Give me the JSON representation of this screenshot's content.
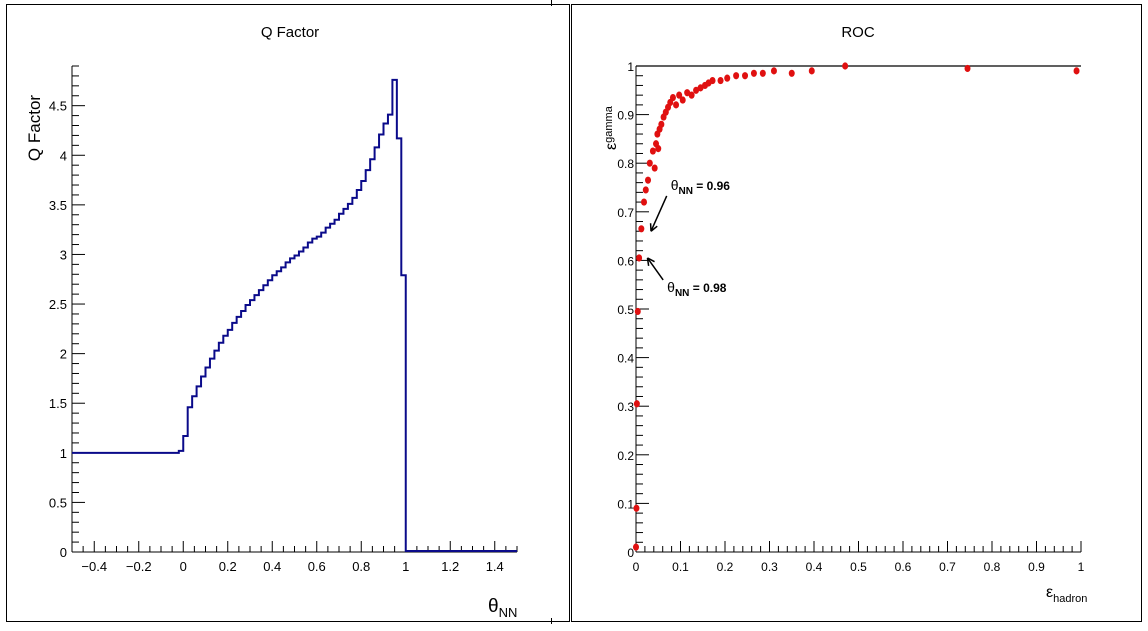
{
  "chart_data": [
    {
      "type": "histogram-step",
      "title": "Q Factor",
      "xlabel": "θ",
      "xlabel_sub": "NN",
      "ylabel": "Q Factor",
      "xlim": [
        -0.5,
        1.5
      ],
      "ylim": [
        0,
        4.9
      ],
      "xticks": [
        -0.4,
        -0.2,
        0,
        0.2,
        0.4,
        0.6,
        0.8,
        1,
        1.2,
        1.4
      ],
      "xtick_labels": [
        "−0.4",
        "−0.2",
        "0",
        "0.2",
        "0.4",
        "0.6",
        "0.8",
        "1",
        "1.2",
        "1.4"
      ],
      "yticks": [
        0,
        0.5,
        1,
        1.5,
        2,
        2.5,
        3,
        3.5,
        4,
        4.5
      ],
      "ytick_labels": [
        "0",
        "0.5",
        "1",
        "1.5",
        "2",
        "2.5",
        "3",
        "3.5",
        "4",
        "4.5"
      ],
      "line_color": "#0a0a8a",
      "bin_width": 0.02,
      "bin_starts": [
        -0.5,
        -0.48,
        -0.46,
        -0.44,
        -0.42,
        -0.4,
        -0.38,
        -0.36,
        -0.34,
        -0.32,
        -0.3,
        -0.28,
        -0.26,
        -0.24,
        -0.22,
        -0.2,
        -0.18,
        -0.16,
        -0.14,
        -0.12,
        -0.1,
        -0.08,
        -0.06,
        -0.04,
        -0.02,
        0.0,
        0.02,
        0.04,
        0.06,
        0.08,
        0.1,
        0.12,
        0.14,
        0.16,
        0.18,
        0.2,
        0.22,
        0.24,
        0.26,
        0.28,
        0.3,
        0.32,
        0.34,
        0.36,
        0.38,
        0.4,
        0.42,
        0.44,
        0.46,
        0.48,
        0.5,
        0.52,
        0.54,
        0.56,
        0.58,
        0.6,
        0.62,
        0.64,
        0.66,
        0.68,
        0.7,
        0.72,
        0.74,
        0.76,
        0.78,
        0.8,
        0.82,
        0.84,
        0.86,
        0.88,
        0.9,
        0.92,
        0.94,
        0.96,
        0.98,
        1.0,
        1.02,
        1.04,
        1.06,
        1.08,
        1.1,
        1.12,
        1.14,
        1.16,
        1.18,
        1.2,
        1.22,
        1.24,
        1.26,
        1.28,
        1.3,
        1.32,
        1.34,
        1.36,
        1.38,
        1.4,
        1.42,
        1.44,
        1.46,
        1.48
      ],
      "values": [
        1.0,
        1.0,
        1.0,
        1.0,
        1.0,
        1.0,
        1.0,
        1.0,
        1.0,
        1.0,
        1.0,
        1.0,
        1.0,
        1.0,
        1.0,
        1.0,
        1.0,
        1.0,
        1.0,
        1.0,
        1.0,
        1.0,
        1.0,
        1.0,
        1.02,
        1.17,
        1.46,
        1.57,
        1.67,
        1.77,
        1.86,
        1.95,
        2.03,
        2.11,
        2.18,
        2.24,
        2.31,
        2.37,
        2.43,
        2.49,
        2.54,
        2.59,
        2.64,
        2.69,
        2.74,
        2.79,
        2.83,
        2.87,
        2.92,
        2.96,
        2.99,
        3.03,
        3.07,
        3.12,
        3.16,
        3.18,
        3.22,
        3.27,
        3.31,
        3.35,
        3.41,
        3.46,
        3.51,
        3.57,
        3.65,
        3.74,
        3.85,
        3.96,
        4.08,
        4.21,
        4.32,
        4.41,
        4.76,
        4.17,
        2.79,
        0.01,
        0.01,
        0.01,
        0.01,
        0.01,
        0.01,
        0.01,
        0.01,
        0.01,
        0.01,
        0.01,
        0.01,
        0.01,
        0.01,
        0.01,
        0.01,
        0.01,
        0.01,
        0.01,
        0.01,
        0.01,
        0.01,
        0.01,
        0.01,
        0.01
      ]
    },
    {
      "type": "scatter",
      "title": "ROC",
      "xlabel": "ε",
      "xlabel_sub": "hadron",
      "ylabel": "ε",
      "ylabel_sub": "gamma",
      "xlim": [
        0,
        1
      ],
      "ylim": [
        0,
        1
      ],
      "xticks": [
        0,
        0.1,
        0.2,
        0.3,
        0.4,
        0.5,
        0.6,
        0.7,
        0.8,
        0.9,
        1
      ],
      "xtick_labels": [
        "0",
        "0.1",
        "0.2",
        "0.3",
        "0.4",
        "0.5",
        "0.6",
        "0.7",
        "0.8",
        "0.9",
        "1"
      ],
      "yticks": [
        0,
        0.1,
        0.2,
        0.3,
        0.4,
        0.5,
        0.6,
        0.7,
        0.8,
        0.9,
        1
      ],
      "ytick_labels": [
        "0",
        "0.1",
        "0.2",
        "0.3",
        "0.4",
        "0.5",
        "0.6",
        "0.7",
        "0.8",
        "0.9",
        "1"
      ],
      "marker_color": "#e01010",
      "x": [
        0.0,
        0.001,
        0.002,
        0.004,
        0.007,
        0.012,
        0.018,
        0.022,
        0.027,
        0.031,
        0.038,
        0.042,
        0.045,
        0.048,
        0.05,
        0.053,
        0.057,
        0.062,
        0.067,
        0.072,
        0.077,
        0.083,
        0.09,
        0.097,
        0.105,
        0.115,
        0.125,
        0.135,
        0.145,
        0.155,
        0.163,
        0.172,
        0.19,
        0.205,
        0.225,
        0.245,
        0.265,
        0.285,
        0.31,
        0.35,
        0.395,
        0.47,
        0.745,
        0.99
      ],
      "y": [
        0.01,
        0.09,
        0.305,
        0.495,
        0.605,
        0.665,
        0.72,
        0.745,
        0.765,
        0.8,
        0.825,
        0.79,
        0.84,
        0.86,
        0.83,
        0.87,
        0.88,
        0.895,
        0.905,
        0.915,
        0.925,
        0.935,
        0.92,
        0.94,
        0.93,
        0.945,
        0.94,
        0.95,
        0.955,
        0.96,
        0.965,
        0.97,
        0.97,
        0.975,
        0.98,
        0.98,
        0.985,
        0.985,
        0.99,
        0.985,
        0.99,
        1.0,
        0.995,
        0.99
      ],
      "annotations": [
        {
          "text": "θ",
          "sub": "NN",
          "value": " = 0.96",
          "point_x": 0.018,
          "point_y": 0.66,
          "label_x": 0.078,
          "label_y": 0.745
        },
        {
          "text": "θ",
          "sub": "NN",
          "value": " = 0.98",
          "point_x": 0.01,
          "point_y": 0.605,
          "label_x": 0.07,
          "label_y": 0.535
        }
      ]
    }
  ]
}
